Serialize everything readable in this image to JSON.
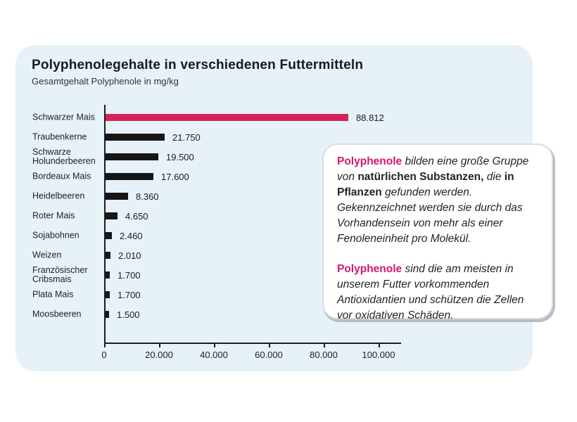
{
  "chart_data": {
    "type": "bar",
    "orientation": "horizontal",
    "title": "Polyphenolegehalte in verschiedenen Futtermitteln",
    "subtitle": "Gesamtgehalt Polyphenole in mg/kg",
    "categories": [
      "Schwarzer Mais",
      "Traubenkerne",
      "Schwarze Holunderbeeren",
      "Bordeaux Mais",
      "Heidelbeeren",
      "Roter Mais",
      "Sojabohnen",
      "Weizen",
      "Französischer Cribsmais",
      "Plata Mais",
      "Moosbeeren"
    ],
    "values": [
      88812,
      21750,
      19500,
      17600,
      8360,
      4650,
      2460,
      2010,
      1700,
      1700,
      1500
    ],
    "value_labels": [
      "88.812",
      "21.750",
      "19.500",
      "17.600",
      "8.360",
      "4.650",
      "2.460",
      "2.010",
      "1.700",
      "1.700",
      "1.500"
    ],
    "xlim": [
      0,
      100000
    ],
    "x_ticks": [
      "0",
      "20.000",
      "40.000",
      "60.000",
      "80.000",
      "100.000"
    ],
    "highlight_index": 0,
    "bar_colors": {
      "highlight": "#d42358",
      "default": "#161616"
    },
    "legend": "none",
    "grid": "off"
  },
  "info_box": {
    "paragraphs": [
      {
        "segments": [
          {
            "style": "brand",
            "text": "Polyphenole"
          },
          {
            "style": "italic",
            "text": " bilden eine große Gruppe von "
          },
          {
            "style": "bold",
            "text": "natürlichen Substanzen,"
          },
          {
            "style": "italic",
            "text": " die "
          },
          {
            "style": "bold",
            "text": "in Pflanzen"
          },
          {
            "style": "italic",
            "text": " gefunden werden. Gekennzeichnet werden sie durch das Vorhandensein von mehr als einer Fenoleneinheit pro Molekül."
          }
        ]
      },
      {
        "segments": [
          {
            "style": "brand",
            "text": "Polyphenole"
          },
          {
            "style": "italic",
            "text": " sind die am meisten in unserem Futter vorkommenden Antioxidantien und schützen die Zellen vor oxidativen Schäden."
          }
        ]
      }
    ]
  }
}
